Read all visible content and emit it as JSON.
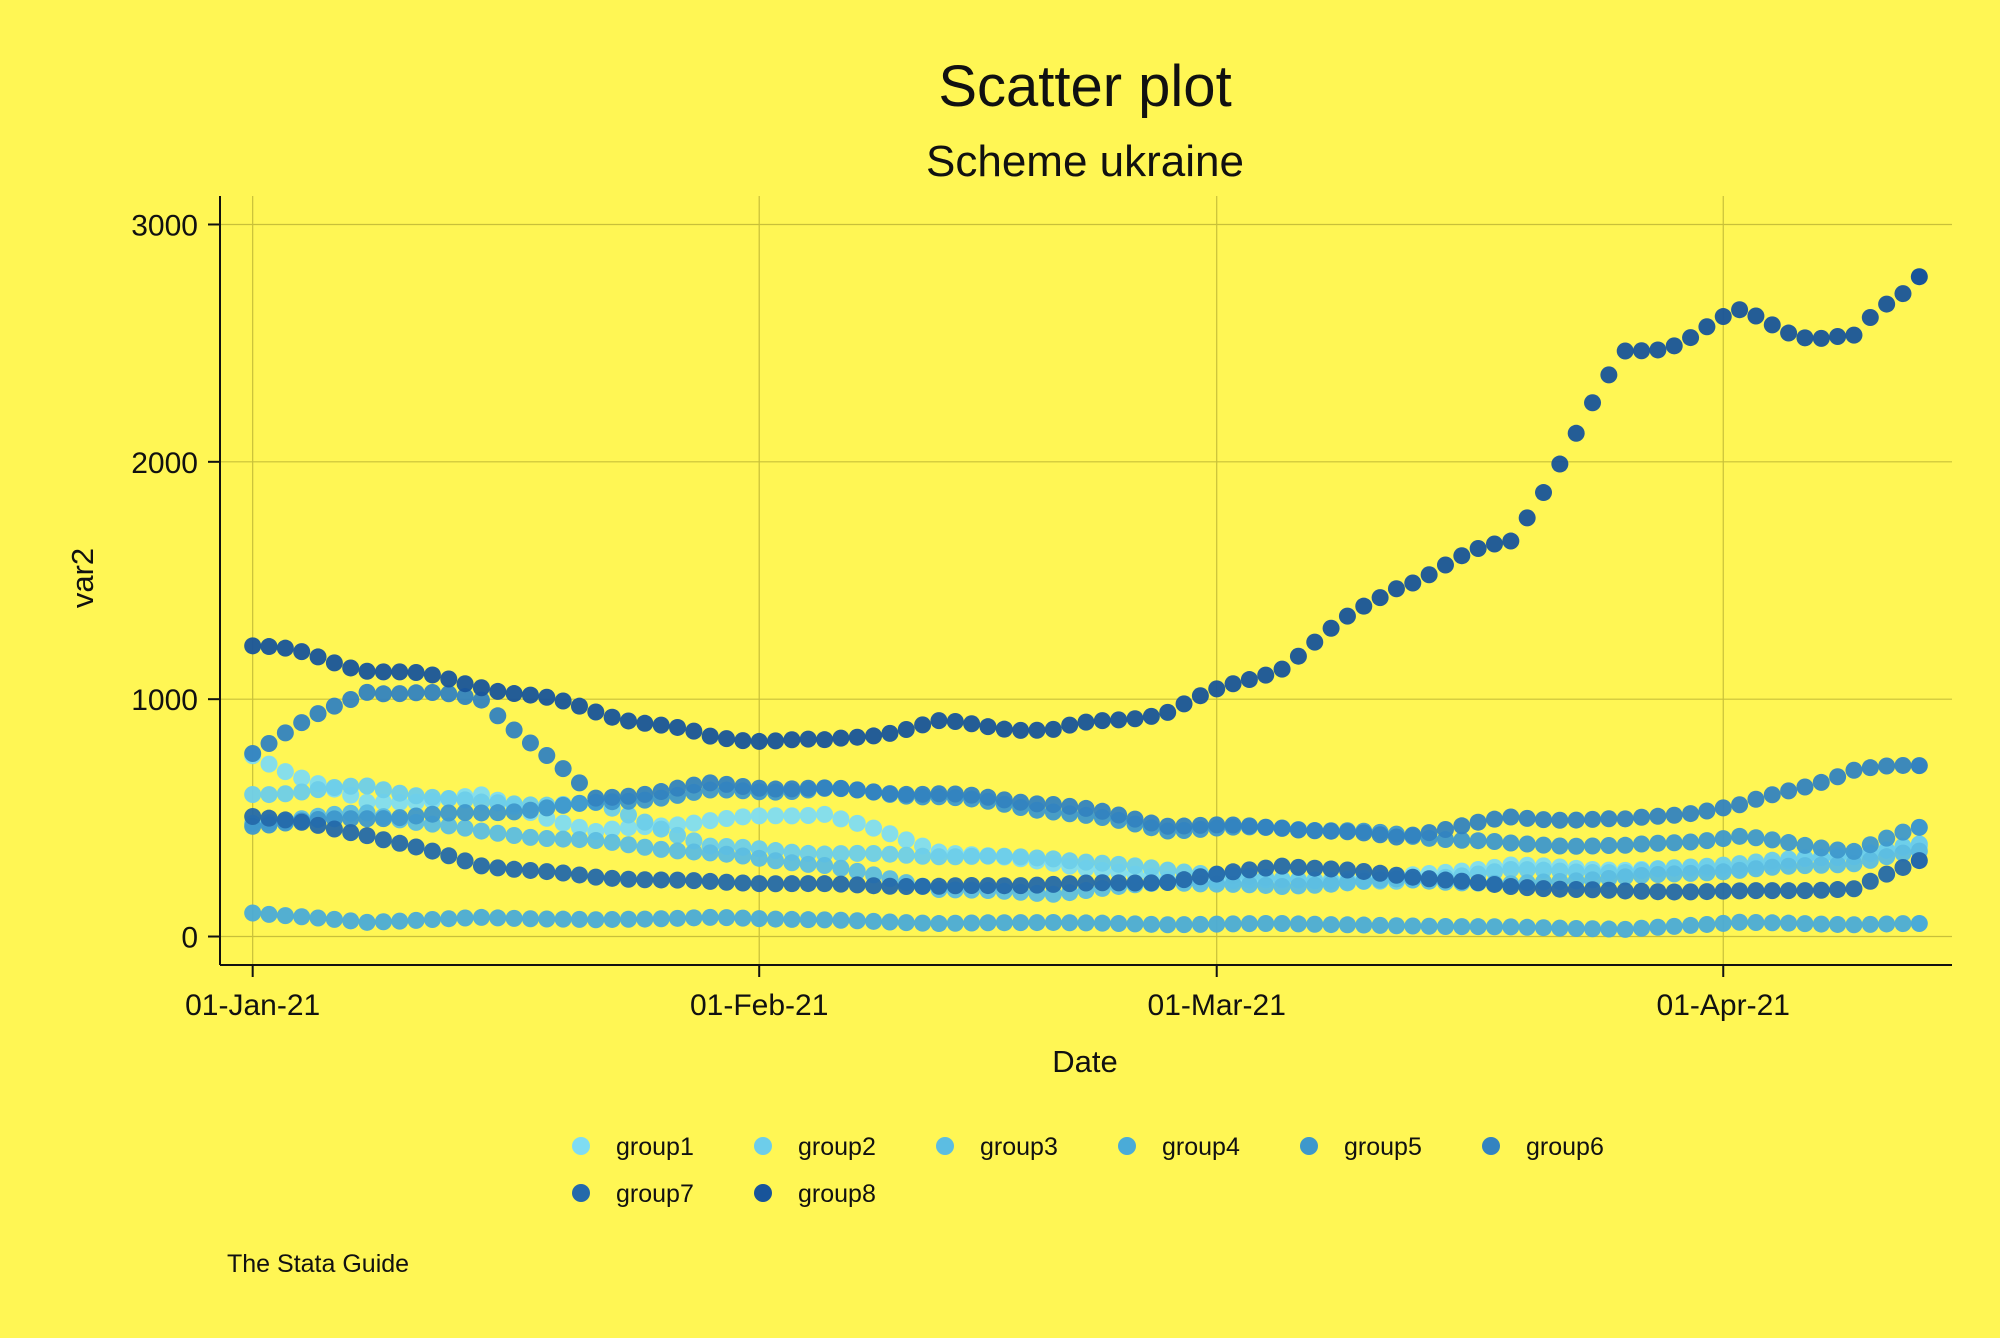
{
  "chart_data": {
    "type": "scatter",
    "title": "Scatter plot",
    "subtitle": "Scheme ukraine",
    "xlabel": "Date",
    "ylabel": "var2",
    "note": "The Stata Guide",
    "x_axis": {
      "type": "date",
      "range": [
        "2020-12-30",
        "2021-04-15"
      ],
      "ticks": [
        {
          "value": "2021-01-01",
          "label": "01-Jan-21"
        },
        {
          "value": "2021-02-01",
          "label": "01-Feb-21"
        },
        {
          "value": "2021-03-01",
          "label": "01-Mar-21"
        },
        {
          "value": "2021-04-01",
          "label": "01-Apr-21"
        }
      ]
    },
    "y_axis": {
      "range": [
        -120,
        3120
      ],
      "ticks": [
        0,
        1000,
        2000,
        3000
      ]
    },
    "grid": true,
    "legend_position": "bottom",
    "point_density": "daily",
    "series": [
      {
        "name": "group1",
        "color": "#7fdcf2",
        "points": [
          [
            "2021-01-01",
            760
          ],
          [
            "2021-01-08",
            560
          ],
          [
            "2021-01-15",
            590
          ],
          [
            "2021-01-22",
            440
          ],
          [
            "2021-01-29",
            490
          ],
          [
            "2021-02-05",
            520
          ],
          [
            "2021-02-12",
            360
          ],
          [
            "2021-02-19",
            310
          ],
          [
            "2021-02-26",
            240
          ],
          [
            "2021-03-05",
            235
          ],
          [
            "2021-03-12",
            250
          ],
          [
            "2021-03-19",
            300
          ],
          [
            "2021-03-26",
            280
          ],
          [
            "2021-04-02",
            290
          ],
          [
            "2021-04-09",
            350
          ],
          [
            "2021-04-13",
            380
          ]
        ]
      },
      {
        "name": "group2",
        "color": "#6dcdea",
        "points": [
          [
            "2021-01-01",
            600
          ],
          [
            "2021-01-08",
            630
          ],
          [
            "2021-01-15",
            560
          ],
          [
            "2021-01-22",
            560
          ],
          [
            "2021-01-29",
            380
          ],
          [
            "2021-02-05",
            350
          ],
          [
            "2021-02-12",
            340
          ],
          [
            "2021-02-19",
            330
          ],
          [
            "2021-02-26",
            280
          ],
          [
            "2021-03-05",
            240
          ],
          [
            "2021-03-12",
            230
          ],
          [
            "2021-03-19",
            280
          ],
          [
            "2021-03-26",
            270
          ],
          [
            "2021-04-02",
            310
          ],
          [
            "2021-04-09",
            340
          ],
          [
            "2021-04-13",
            390
          ]
        ]
      },
      {
        "name": "group3",
        "color": "#5cbde2",
        "points": [
          [
            "2021-01-01",
            480
          ],
          [
            "2021-01-08",
            520
          ],
          [
            "2021-01-15",
            440
          ],
          [
            "2021-01-22",
            400
          ],
          [
            "2021-01-29",
            350
          ],
          [
            "2021-02-05",
            300
          ],
          [
            "2021-02-12",
            200
          ],
          [
            "2021-02-19",
            180
          ],
          [
            "2021-02-26",
            230
          ],
          [
            "2021-03-05",
            210
          ],
          [
            "2021-03-12",
            240
          ],
          [
            "2021-03-19",
            220
          ],
          [
            "2021-03-26",
            250
          ],
          [
            "2021-04-02",
            280
          ],
          [
            "2021-04-09",
            310
          ],
          [
            "2021-04-13",
            360
          ]
        ]
      },
      {
        "name": "group4",
        "color": "#4aabd8",
        "points": [
          [
            "2021-01-01",
            100
          ],
          [
            "2021-01-08",
            60
          ],
          [
            "2021-01-15",
            80
          ],
          [
            "2021-01-22",
            70
          ],
          [
            "2021-01-29",
            80
          ],
          [
            "2021-02-05",
            70
          ],
          [
            "2021-02-12",
            55
          ],
          [
            "2021-02-19",
            60
          ],
          [
            "2021-02-26",
            50
          ],
          [
            "2021-03-05",
            55
          ],
          [
            "2021-03-12",
            45
          ],
          [
            "2021-03-19",
            40
          ],
          [
            "2021-03-26",
            30
          ],
          [
            "2021-04-02",
            60
          ],
          [
            "2021-04-09",
            50
          ],
          [
            "2021-04-13",
            55
          ]
        ]
      },
      {
        "name": "group5",
        "color": "#3e98cc",
        "points": [
          [
            "2021-01-01",
            470
          ],
          [
            "2021-01-08",
            500
          ],
          [
            "2021-01-15",
            520
          ],
          [
            "2021-01-22",
            560
          ],
          [
            "2021-01-29",
            610
          ],
          [
            "2021-02-05",
            620
          ],
          [
            "2021-02-12",
            590
          ],
          [
            "2021-02-19",
            530
          ],
          [
            "2021-02-26",
            450
          ],
          [
            "2021-03-05",
            460
          ],
          [
            "2021-03-12",
            430
          ],
          [
            "2021-03-19",
            390
          ],
          [
            "2021-03-26",
            380
          ],
          [
            "2021-04-02",
            420
          ],
          [
            "2021-04-09",
            360
          ],
          [
            "2021-04-13",
            460
          ]
        ]
      },
      {
        "name": "group6",
        "color": "#3383c0",
        "points": [
          [
            "2021-01-01",
            780
          ],
          [
            "2021-01-08",
            1040
          ],
          [
            "2021-01-15",
            1000
          ],
          [
            "2021-01-22",
            580
          ],
          [
            "2021-01-29",
            640
          ],
          [
            "2021-02-05",
            620
          ],
          [
            "2021-02-12",
            600
          ],
          [
            "2021-02-19",
            560
          ],
          [
            "2021-02-26",
            470
          ],
          [
            "2021-03-05",
            460
          ],
          [
            "2021-03-12",
            420
          ],
          [
            "2021-03-19",
            500
          ],
          [
            "2021-03-26",
            490
          ],
          [
            "2021-04-02",
            550
          ],
          [
            "2021-04-09",
            700
          ],
          [
            "2021-04-13",
            720
          ]
        ]
      },
      {
        "name": "group7",
        "color": "#2469aa",
        "points": [
          [
            "2021-01-01",
            510
          ],
          [
            "2021-01-08",
            430
          ],
          [
            "2021-01-15",
            300
          ],
          [
            "2021-01-22",
            250
          ],
          [
            "2021-01-29",
            230
          ],
          [
            "2021-02-05",
            220
          ],
          [
            "2021-02-12",
            210
          ],
          [
            "2021-02-19",
            220
          ],
          [
            "2021-02-26",
            230
          ],
          [
            "2021-03-05",
            300
          ],
          [
            "2021-03-12",
            260
          ],
          [
            "2021-03-19",
            210
          ],
          [
            "2021-03-26",
            190
          ],
          [
            "2021-04-02",
            190
          ],
          [
            "2021-04-09",
            200
          ],
          [
            "2021-04-13",
            320
          ]
        ]
      },
      {
        "name": "group8",
        "color": "#18549a",
        "points": [
          [
            "2021-01-01",
            1230
          ],
          [
            "2021-01-08",
            1130
          ],
          [
            "2021-01-15",
            1060
          ],
          [
            "2021-01-22",
            950
          ],
          [
            "2021-01-29",
            840
          ],
          [
            "2021-02-05",
            820
          ],
          [
            "2021-02-12",
            900
          ],
          [
            "2021-02-19",
            870
          ],
          [
            "2021-02-26",
            950
          ],
          [
            "2021-03-05",
            1140
          ],
          [
            "2021-03-12",
            1480
          ],
          [
            "2021-03-19",
            1670
          ],
          [
            "2021-03-26",
            2450
          ],
          [
            "2021-04-02",
            2610
          ],
          [
            "2021-04-09",
            2510
          ],
          [
            "2021-04-13",
            2780
          ]
        ]
      }
    ]
  }
}
